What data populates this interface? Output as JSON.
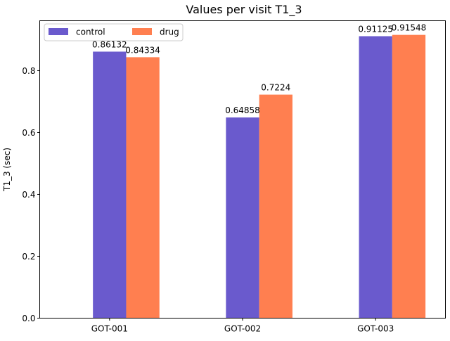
{
  "chart_data": {
    "type": "bar",
    "title": "Values per visit T1_3",
    "xlabel": "",
    "ylabel": "T1_3 (sec)",
    "categories": [
      "GOT-001",
      "GOT-002",
      "GOT-003"
    ],
    "series": [
      {
        "name": "control",
        "color": "#6a5acd",
        "values": [
          0.86132,
          0.64858,
          0.91125
        ],
        "labels": [
          "0.86132",
          "0.64858",
          "0.91125"
        ]
      },
      {
        "name": "drug",
        "color": "#ff7f50",
        "values": [
          0.84334,
          0.7224,
          0.91548
        ],
        "labels": [
          "0.84334",
          "0.7224",
          "0.91548"
        ]
      }
    ],
    "ylim": [
      0,
      0.9612
    ],
    "yticks": [
      0.0,
      0.2,
      0.4,
      0.6,
      0.8
    ],
    "ytick_labels": [
      "0.0",
      "0.2",
      "0.4",
      "0.6",
      "0.8"
    ],
    "legend_position": "upper-left",
    "legend_columns": 2,
    "grid": false
  }
}
